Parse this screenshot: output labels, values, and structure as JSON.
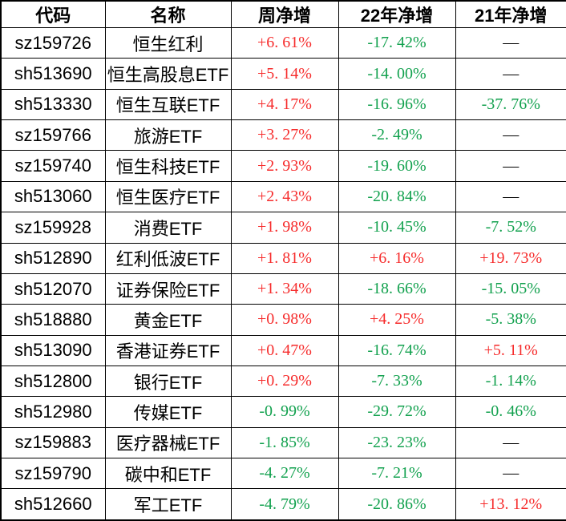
{
  "colors": {
    "up": "#f62c2c",
    "down": "#12a14e",
    "flat": "#000000",
    "border": "#000000",
    "background": "#ffffff"
  },
  "table": {
    "columns": [
      {
        "key": "code",
        "label": "代码"
      },
      {
        "key": "name",
        "label": "名称"
      },
      {
        "key": "week",
        "label": "周净增"
      },
      {
        "key": "y22",
        "label": "22年净增"
      },
      {
        "key": "y21",
        "label": "21年净增"
      }
    ],
    "rows": [
      {
        "code": "sz159726",
        "name": "恒生红利",
        "values": [
          {
            "text": "+6. 61%",
            "trend": "up"
          },
          {
            "text": "-17. 42%",
            "trend": "down"
          },
          {
            "text": "—",
            "trend": "flat"
          }
        ]
      },
      {
        "code": "sh513690",
        "name": "恒生高股息ETF",
        "values": [
          {
            "text": "+5. 14%",
            "trend": "up"
          },
          {
            "text": "-14. 00%",
            "trend": "down"
          },
          {
            "text": "—",
            "trend": "flat"
          }
        ]
      },
      {
        "code": "sh513330",
        "name": "恒生互联ETF",
        "values": [
          {
            "text": "+4. 17%",
            "trend": "up"
          },
          {
            "text": "-16. 96%",
            "trend": "down"
          },
          {
            "text": "-37. 76%",
            "trend": "down"
          }
        ]
      },
      {
        "code": "sz159766",
        "name": "旅游ETF",
        "values": [
          {
            "text": "+3. 27%",
            "trend": "up"
          },
          {
            "text": "-2. 49%",
            "trend": "down"
          },
          {
            "text": "—",
            "trend": "flat"
          }
        ]
      },
      {
        "code": "sz159740",
        "name": "恒生科技ETF",
        "values": [
          {
            "text": "+2. 93%",
            "trend": "up"
          },
          {
            "text": "-19. 60%",
            "trend": "down"
          },
          {
            "text": "—",
            "trend": "flat"
          }
        ]
      },
      {
        "code": "sh513060",
        "name": "恒生医疗ETF",
        "values": [
          {
            "text": "+2. 43%",
            "trend": "up"
          },
          {
            "text": "-20. 84%",
            "trend": "down"
          },
          {
            "text": "—",
            "trend": "flat"
          }
        ]
      },
      {
        "code": "sz159928",
        "name": "消费ETF",
        "values": [
          {
            "text": "+1. 98%",
            "trend": "up"
          },
          {
            "text": "-10. 45%",
            "trend": "down"
          },
          {
            "text": "-7. 52%",
            "trend": "down"
          }
        ]
      },
      {
        "code": "sh512890",
        "name": "红利低波ETF",
        "values": [
          {
            "text": "+1. 81%",
            "trend": "up"
          },
          {
            "text": "+6. 16%",
            "trend": "up"
          },
          {
            "text": "+19. 73%",
            "trend": "up"
          }
        ]
      },
      {
        "code": "sh512070",
        "name": "证券保险ETF",
        "values": [
          {
            "text": "+1. 34%",
            "trend": "up"
          },
          {
            "text": "-18. 66%",
            "trend": "down"
          },
          {
            "text": "-15. 05%",
            "trend": "down"
          }
        ]
      },
      {
        "code": "sh518880",
        "name": "黄金ETF",
        "values": [
          {
            "text": "+0. 98%",
            "trend": "up"
          },
          {
            "text": "+4. 25%",
            "trend": "up"
          },
          {
            "text": "-5. 38%",
            "trend": "down"
          }
        ]
      },
      {
        "code": "sh513090",
        "name": "香港证券ETF",
        "values": [
          {
            "text": "+0. 47%",
            "trend": "up"
          },
          {
            "text": "-16. 74%",
            "trend": "down"
          },
          {
            "text": "+5. 11%",
            "trend": "up"
          }
        ]
      },
      {
        "code": "sh512800",
        "name": "银行ETF",
        "values": [
          {
            "text": "+0. 29%",
            "trend": "up"
          },
          {
            "text": "-7. 33%",
            "trend": "down"
          },
          {
            "text": "-1. 14%",
            "trend": "down"
          }
        ]
      },
      {
        "code": "sh512980",
        "name": "传媒ETF",
        "values": [
          {
            "text": "-0. 99%",
            "trend": "down"
          },
          {
            "text": "-29. 72%",
            "trend": "down"
          },
          {
            "text": "-0. 46%",
            "trend": "down"
          }
        ]
      },
      {
        "code": "sz159883",
        "name": "医疗器械ETF",
        "values": [
          {
            "text": "-1. 85%",
            "trend": "down"
          },
          {
            "text": "-23. 23%",
            "trend": "down"
          },
          {
            "text": "—",
            "trend": "flat"
          }
        ]
      },
      {
        "code": "sz159790",
        "name": "碳中和ETF",
        "values": [
          {
            "text": "-4. 27%",
            "trend": "down"
          },
          {
            "text": "-7. 21%",
            "trend": "down"
          },
          {
            "text": "—",
            "trend": "flat"
          }
        ]
      },
      {
        "code": "sh512660",
        "name": "军工ETF",
        "values": [
          {
            "text": "-4. 79%",
            "trend": "down"
          },
          {
            "text": "-20. 86%",
            "trend": "down"
          },
          {
            "text": "+13. 12%",
            "trend": "up"
          }
        ]
      }
    ]
  },
  "chart_data": {
    "type": "table",
    "title": "",
    "columns": [
      "代码",
      "名称",
      "周净增",
      "22年净增",
      "21年净增"
    ],
    "rows": [
      [
        "sz159726",
        "恒生红利",
        "+6.61%",
        "-17.42%",
        "—"
      ],
      [
        "sh513690",
        "恒生高股息ETF",
        "+5.14%",
        "-14.00%",
        "—"
      ],
      [
        "sh513330",
        "恒生互联ETF",
        "+4.17%",
        "-16.96%",
        "-37.76%"
      ],
      [
        "sz159766",
        "旅游ETF",
        "+3.27%",
        "-2.49%",
        "—"
      ],
      [
        "sz159740",
        "恒生科技ETF",
        "+2.93%",
        "-19.60%",
        "—"
      ],
      [
        "sh513060",
        "恒生医疗ETF",
        "+2.43%",
        "-20.84%",
        "—"
      ],
      [
        "sz159928",
        "消费ETF",
        "+1.98%",
        "-10.45%",
        "-7.52%"
      ],
      [
        "sh512890",
        "红利低波ETF",
        "+1.81%",
        "+6.16%",
        "+19.73%"
      ],
      [
        "sh512070",
        "证券保险ETF",
        "+1.34%",
        "-18.66%",
        "-15.05%"
      ],
      [
        "sh518880",
        "黄金ETF",
        "+0.98%",
        "+4.25%",
        "-5.38%"
      ],
      [
        "sh513090",
        "香港证券ETF",
        "+0.47%",
        "-16.74%",
        "+5.11%"
      ],
      [
        "sh512800",
        "银行ETF",
        "+0.29%",
        "-7.33%",
        "-1.14%"
      ],
      [
        "sh512980",
        "传媒ETF",
        "-0.99%",
        "-29.72%",
        "-0.46%"
      ],
      [
        "sz159883",
        "医疗器械ETF",
        "-1.85%",
        "-23.23%",
        "—"
      ],
      [
        "sz159790",
        "碳中和ETF",
        "-4.27%",
        "-7.21%",
        "—"
      ],
      [
        "sh512660",
        "军工ETF",
        "-4.79%",
        "-20.86%",
        "+13.12%"
      ]
    ],
    "color_coding": {
      "positive_values": "#f62c2c",
      "negative_values": "#12a14e",
      "missing_values_dash": "#000000"
    },
    "layout": {
      "grid": "full black grid borders",
      "header_style": "bold black"
    }
  }
}
